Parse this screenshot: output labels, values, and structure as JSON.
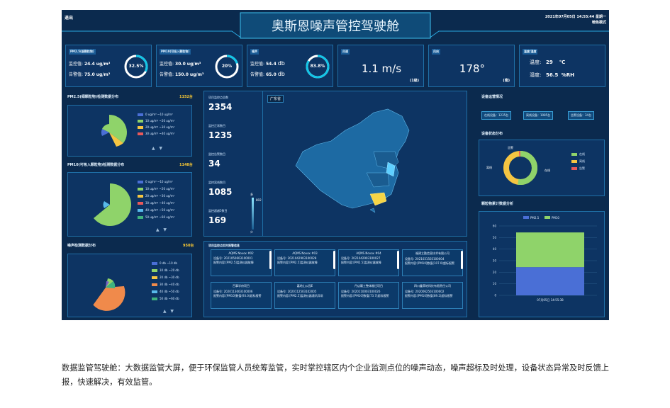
{
  "header": {
    "exit": "退出",
    "title": "奥斯恩噪声管控驾驶舱",
    "datetime": "2021年07月05日 14:55:44 星期一",
    "mode": "暗色模式"
  },
  "top_cards": {
    "pm25": {
      "title": "PM2.5(细颗粒物)",
      "monitor_label": "监控值:",
      "monitor": "24.4",
      "warn_label": "告警值:",
      "warn": "75.0",
      "unit": "ug/m³",
      "percent": "32.5%",
      "fraction": 0.325
    },
    "pm10": {
      "title": "PM10(可吸入颗粒物)",
      "monitor_label": "监控值:",
      "monitor": "30.0",
      "warn_label": "告警值:",
      "warn": "150.0",
      "unit": "ug/m³",
      "percent": "20%",
      "fraction": 0.2
    },
    "noise": {
      "title": "噪声",
      "monitor_label": "监控值:",
      "monitor": "54.4",
      "warn_label": "告警值:",
      "warn": "65.0",
      "unit": "db",
      "percent": "83.8%",
      "fraction": 0.838
    },
    "wind_speed": {
      "title": "风速",
      "value": "1.1 m/s",
      "level": "(1级)"
    },
    "wind_dir": {
      "title": "风向",
      "value": "178°",
      "dir": "(南)"
    },
    "temp_hum": {
      "title": "温度/湿度",
      "temp_label": "温度:",
      "temp": "29",
      "temp_unit": "℃",
      "hum_label": "湿度:",
      "hum": "56.5",
      "hum_unit": "%RH"
    }
  },
  "pm25_dist": {
    "title": "PM2.5(细颗粒物)检测数据分布",
    "count": "1152台",
    "legend": [
      "0 ug/m³ ~10 ug/m³",
      "10 ug/m³ ~20 ug/m³",
      "20 ug/m³ ~30 ug/m³",
      "30 ug/m³ ~40 ug/m³"
    ]
  },
  "pm10_dist": {
    "title": "PM10(可吸入颗粒物)检测数据分布",
    "count": "1148台",
    "legend": [
      "0 ug/m³ ~10 ug/m³",
      "10 ug/m³ ~20 ug/m³",
      "20 ug/m³ ~30 ug/m³",
      "30 ug/m³ ~40 ug/m³",
      "40 ug/m³ ~50 ug/m³",
      "50 ug/m³ ~60 ug/m³"
    ]
  },
  "noise_dist": {
    "title": "噪声检测数据分布",
    "count": "950台",
    "legend": [
      "0 db ~10 db",
      "10 db ~20 db",
      "20 db ~30 db",
      "30 db ~40 db",
      "40 db ~50 db",
      "50 db ~60 db"
    ]
  },
  "stats": [
    {
      "label": "项目监控点总数",
      "value": "2354"
    },
    {
      "label": "监控正常数目",
      "value": "1235"
    },
    {
      "label": "监控告警数目",
      "value": "34"
    },
    {
      "label": "监控离线数目",
      "value": "1085"
    },
    {
      "label": "监控超越5数目",
      "value": "169"
    }
  ],
  "map": {
    "region": "广东省",
    "scale_top": "多",
    "scale_mid": "802",
    "scale_bottom": "少"
  },
  "devices": {
    "title": "项目监控点实时报警信息",
    "items": [
      {
        "name": "AQMS Novox #02",
        "code_label": "设备号:",
        "code": "2021050603100001",
        "content": "报警内容:[PM2.5]监测仪器故障"
      },
      {
        "name": "AQMS Novox #03",
        "code_label": "设备号:",
        "code": "2021042903100028",
        "content": "报警内容:[PM2.5]监测仪器故障"
      },
      {
        "name": "AQMS Novox #04",
        "code_label": "设备号:",
        "code": "2021042903100027",
        "content": "报警内容:[PM2.5]监测仪器故障"
      },
      {
        "name": "福建立勤信息技术有限公司",
        "code_label": "设备号:",
        "code": "2021031503100004",
        "content": "报警内容:[PM10]数值(107.0)超标报警"
      },
      {
        "name": "百事学府项目",
        "code_label": "设备号:",
        "code": "2020113003100006",
        "content": "报警内容:[PM10]数值(93.0)超标报警"
      },
      {
        "name": "嘉地山公园E",
        "code_label": "设备号:",
        "code": "2020112503102005",
        "content": "报警内容:[PM2.5]监测仪器通讯异常"
      },
      {
        "name": "丹店籁工整体搬迁项目",
        "code_label": "设备号:",
        "code": "2020110003100026",
        "content": "报警内容:[PM10]数值(73.7)超标报警"
      },
      {
        "name": "四川鑫荣地科技有限责任公司",
        "code_label": "设备号:",
        "code": "2020062503100002",
        "content": "报警内容:[PM10]数值(89.2)超标报警"
      }
    ]
  },
  "device_status": {
    "title": "设备运营情况",
    "online": "在线设备：1235台",
    "offline": "离线设备：1085台",
    "alarm": "告警设备：34台"
  },
  "status_chart": {
    "title": "设备状态分布",
    "labels": {
      "alarm": "告警",
      "offline": "离线",
      "online": "在线"
    },
    "legend": [
      "在线",
      "离线",
      "告警"
    ],
    "values": {
      "online": 1235,
      "offline": 1085,
      "alarm": 34
    }
  },
  "pm_chart": {
    "title": "颗粒物累计数据分析",
    "x_label": "07月05日 14:55:38"
  },
  "colors": {
    "bg": "#0b2a4e",
    "panel": "#0d3463",
    "border": "#1f6fa6",
    "ring": "#12c6e8",
    "green": "#8fd36a",
    "yellow": "#f5c542",
    "red": "#e8595a",
    "blue": "#4a6fd6",
    "cyan": "#58b9ea",
    "orange": "#f08a4b"
  },
  "chart_data": {
    "type": "bar",
    "categories": [
      "07月05日 14:55:38"
    ],
    "series": [
      {
        "name": "PM2.5",
        "values": [
          24.4
        ]
      },
      {
        "name": "PM10",
        "values": [
          30.0
        ]
      }
    ],
    "stacked": true,
    "ylim": [
      0,
      60
    ],
    "yticks": [
      0,
      10,
      20,
      30,
      40,
      50,
      60
    ],
    "legend": "top"
  },
  "caption": "数据监管驾驶舱：大数据监管大屏，便于环保监管人员统筹监管，实时掌控辖区内个企业监测点位的噪声动态，噪声超标及时处理，设备状态异常及时反馈上报，快速解决，有效监管。"
}
